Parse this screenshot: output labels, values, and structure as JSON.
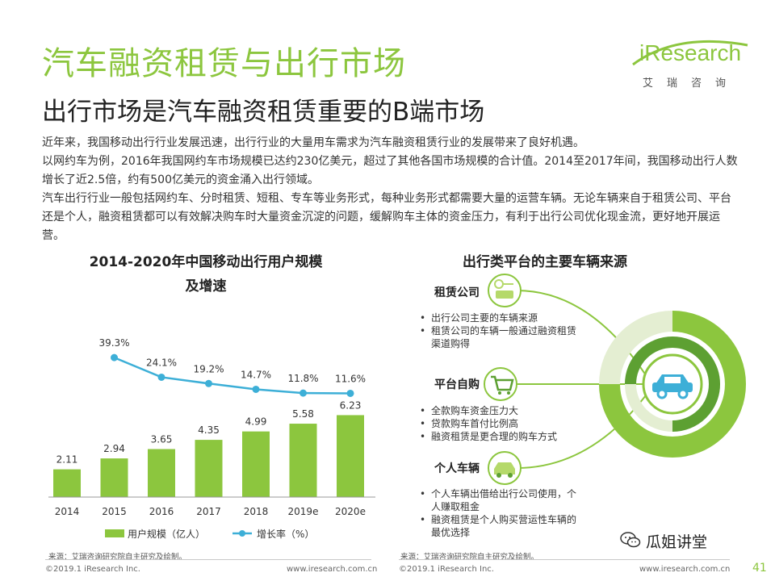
{
  "header": {
    "title": "汽车融资租赁与出行市场",
    "subtitle": "出行市场是汽车融资租赁重要的B端市场"
  },
  "logo": {
    "word": "iResearch",
    "cn": "艾瑞咨询"
  },
  "paragraphs": [
    "近年来，我国移动出行行业发展迅速，出行行业的大量用车需求为汽车融资租赁行业的发展带来了良好机遇。",
    "以网约车为例，2016年我国网约车市场规模已达约230亿美元，超过了其他各国市场规模的合计值。2014至2017年间，我国移动出行人数增长了近2.5倍，约有500亿美元的资金涌入出行领域。",
    "汽车出行行业一般包括网约车、分时租赁、短租、专车等业务形式，每种业务形式都需要大量的运营车辆。无论车辆来自于租赁公司、平台还是个人，融资租赁都可以有效解决购车时大量资金沉淀的问题，缓解购车主体的资金压力，有利于出行公司优化现金流，更好地开展运营。"
  ],
  "left_chart": {
    "title_line1": "2014-2020年中国移动出行用户规模",
    "title_line2": "及增速",
    "source": "来源：艾瑞咨询研究院自主研究及绘制。"
  },
  "chart_data": {
    "type": "bar",
    "categories": [
      "2014",
      "2015",
      "2016",
      "2017",
      "2018",
      "2019e",
      "2020e"
    ],
    "series": [
      {
        "name": "用户规模（亿人）",
        "type": "bar",
        "values": [
          2.11,
          2.94,
          3.65,
          4.35,
          4.99,
          5.58,
          6.23
        ],
        "labels": [
          "2.11",
          "2.94",
          "3.65",
          "4.35",
          "4.99",
          "5.58",
          "6.23"
        ],
        "color": "#8cc63e"
      },
      {
        "name": "增长率（%）",
        "type": "line",
        "values": [
          null,
          39.3,
          24.1,
          19.2,
          14.7,
          11.8,
          11.6
        ],
        "labels": [
          "",
          "39.3%",
          "24.1%",
          "19.2%",
          "14.7%",
          "11.8%",
          "11.6%"
        ],
        "color": "#3dafd7"
      }
    ],
    "legend_position": "bottom",
    "grid": false
  },
  "right_panel": {
    "title": "出行类平台的主要车辆来源",
    "groups": [
      {
        "label": "租赁公司",
        "icon": "car-key-icon",
        "bullets": [
          "出行公司主要的车辆来源",
          "租赁公司的车辆一般通过融资租赁渠道购得"
        ]
      },
      {
        "label": "平台自购",
        "icon": "shopping-cart-icon",
        "bullets": [
          "全款购车资金压力大",
          "贷款购车首付比例高",
          "融资租赁是更合理的购车方式"
        ]
      },
      {
        "label": "个人车辆",
        "icon": "car-icon",
        "bullets": [
          "个人车辆出借给出行公司使用，个人赚取租金",
          "融资租赁是个人购买营运性车辆的最优选择"
        ]
      }
    ],
    "source": "来源：艾瑞咨询研究院自主研究及绘制。"
  },
  "footer": {
    "left_copyright": "©2019.1 iResearch Inc.",
    "left_url": "www.iresearch.com.cn",
    "right_copyright": "©2019.1 iResearch Inc.",
    "right_url": "www.iresearch.com.cn",
    "page_number": "41"
  },
  "watermark": {
    "text": "瓜姐讲堂"
  },
  "colors": {
    "accent": "#8cc63e",
    "line": "#3dafd7",
    "dark_green": "#5da032",
    "light_green": "#b5d96a"
  }
}
